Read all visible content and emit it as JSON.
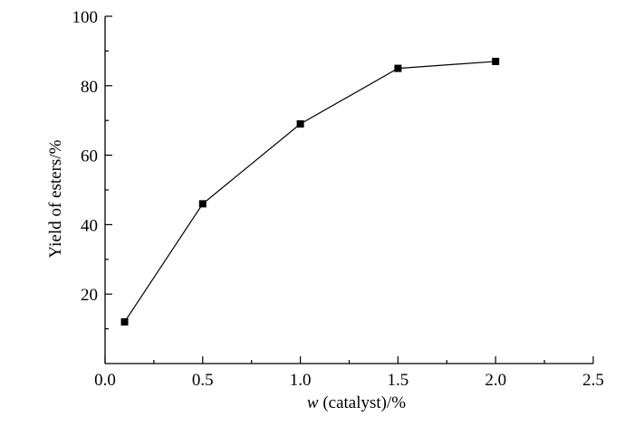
{
  "chart_data": {
    "type": "line",
    "title": "",
    "xlabel": {
      "italic": "w",
      "text": " (catalyst)/%"
    },
    "ylabel": "Yield of esters/%",
    "xlim": [
      0.0,
      2.5
    ],
    "ylim": [
      0,
      100
    ],
    "x_ticks": [
      "0.0",
      "0.5",
      "1.0",
      "1.5",
      "2.0",
      "2.5"
    ],
    "y_ticks": [
      "20",
      "40",
      "60",
      "80",
      "100"
    ],
    "grid": false,
    "legend": "none",
    "series": [
      {
        "marker": "square",
        "color": "#000000",
        "x": [
          0.1,
          0.5,
          1.0,
          1.5,
          2.0
        ],
        "y": [
          12,
          46,
          69,
          85,
          87
        ]
      }
    ]
  }
}
